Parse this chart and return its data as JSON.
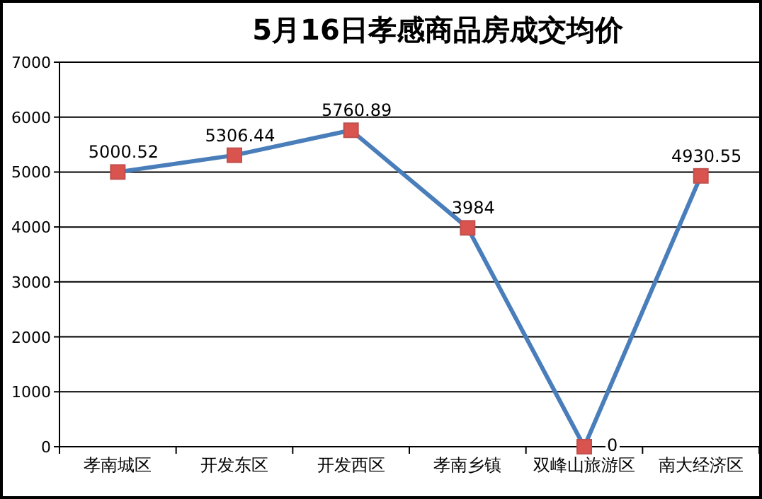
{
  "chart_data": {
    "type": "line",
    "title": "5月16日孝感商品房成交均价",
    "categories": [
      "孝南城区",
      "开发东区",
      "开发西区",
      "孝南乡镇",
      "双峰山旅游区",
      "南大经济区"
    ],
    "series": [
      {
        "color": "#4a7ebb",
        "values": [
          5000.52,
          5306.44,
          5760.89,
          3984,
          0,
          4930.55
        ]
      }
    ],
    "ylim": [
      0,
      7000
    ],
    "yticks": [
      0,
      1000,
      2000,
      3000,
      4000,
      5000,
      6000,
      7000
    ],
    "grid": "y",
    "marker": "square",
    "data_labels": true
  }
}
